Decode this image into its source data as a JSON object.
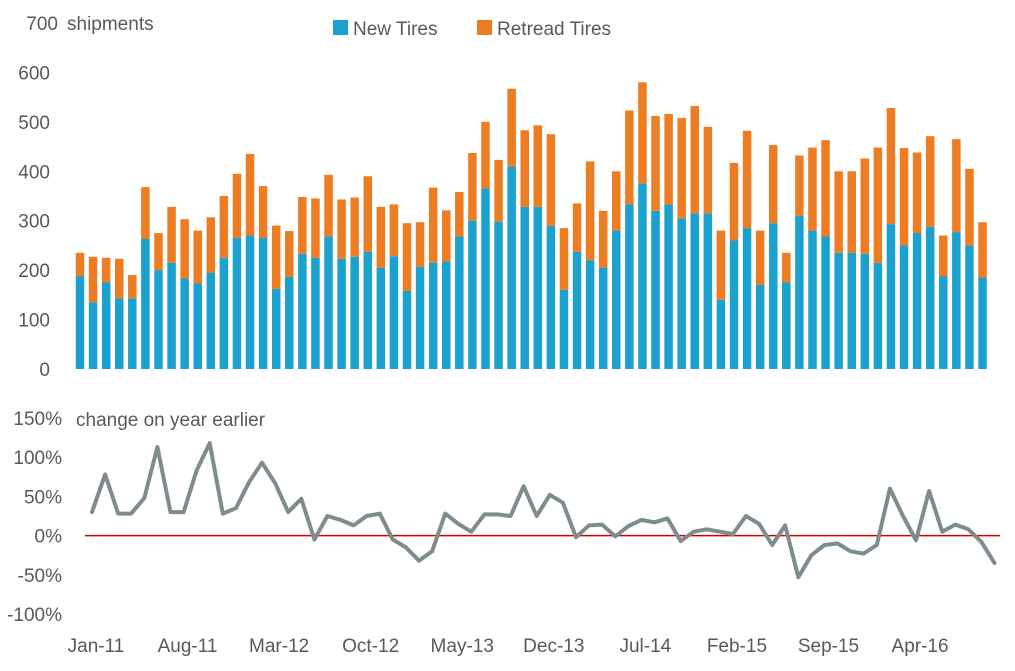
{
  "chart_data": [
    {
      "type": "bar",
      "stacked": true,
      "title": "shipments",
      "ylim": [
        0,
        700
      ],
      "yticks": [
        0,
        100,
        200,
        300,
        400,
        500,
        600,
        700
      ],
      "ytick_labels": [
        "0",
        "100",
        "200",
        "300",
        "400",
        "500",
        "600",
        "700"
      ],
      "legend_position": "top-center",
      "series": [
        {
          "name": "New Tires",
          "color": "#1AA1CD",
          "values": [
            188,
            135,
            175,
            143,
            143,
            263,
            200,
            215,
            183,
            173,
            195,
            225,
            265,
            270,
            265,
            162,
            187,
            233,
            225,
            268,
            223,
            227,
            237,
            205,
            228,
            158,
            207,
            215,
            218,
            268,
            300,
            365,
            298,
            410,
            328,
            328,
            290,
            160,
            237,
            220,
            205,
            280,
            333,
            375,
            320,
            333,
            305,
            315,
            315,
            140,
            260,
            285,
            170,
            295,
            175,
            310,
            280,
            268,
            235,
            235,
            233,
            215,
            293,
            250,
            275,
            288,
            188,
            277,
            250,
            185
          ]
        },
        {
          "name": "Retread Tires",
          "color": "#ED7D23",
          "values": [
            47,
            92,
            50,
            80,
            47,
            105,
            75,
            113,
            120,
            107,
            112,
            125,
            130,
            165,
            105,
            128,
            92,
            115,
            120,
            125,
            120,
            120,
            153,
            123,
            105,
            137,
            90,
            152,
            103,
            90,
            137,
            135,
            125,
            157,
            155,
            165,
            185,
            125,
            98,
            200,
            115,
            120,
            190,
            205,
            192,
            183,
            203,
            217,
            175,
            140,
            157,
            197,
            110,
            158,
            60,
            122,
            168,
            195,
            165,
            165,
            193,
            233,
            235,
            197,
            163,
            183,
            82,
            188,
            155,
            112
          ]
        }
      ]
    },
    {
      "type": "line",
      "title": "change on year earlier",
      "ylim": [
        -100,
        150
      ],
      "yticks": [
        -100,
        -50,
        0,
        50,
        100,
        150
      ],
      "ytick_labels": [
        "-100%",
        "-50%",
        "0%",
        "50%",
        "100%",
        "150%"
      ],
      "zero_line_color": "#CC0000",
      "series": [
        {
          "name": "change on year earlier",
          "color": "#7F8C8D",
          "values": [
            30,
            78,
            28,
            28,
            48,
            113,
            30,
            30,
            83,
            118,
            28,
            35,
            68,
            93,
            67,
            30,
            47,
            -5,
            25,
            20,
            13,
            25,
            28,
            -5,
            -15,
            -32,
            -20,
            28,
            15,
            5,
            27,
            27,
            25,
            63,
            25,
            52,
            42,
            -2,
            13,
            14,
            -1,
            12,
            20,
            17,
            22,
            -7,
            5,
            8,
            5,
            2,
            25,
            15,
            -12,
            13,
            -53,
            -25,
            -12,
            -10,
            -20,
            -23,
            -12,
            60,
            25,
            -6,
            57,
            5,
            14,
            8,
            -8,
            -35
          ]
        }
      ]
    }
  ],
  "x_axis": {
    "tick_labels": [
      "Jan-11",
      "Aug-11",
      "Mar-12",
      "Oct-12",
      "May-13",
      "Dec-13",
      "Jul-14",
      "Feb-15",
      "Sep-15",
      "Apr-16"
    ],
    "tick_every_n_months": 7
  }
}
